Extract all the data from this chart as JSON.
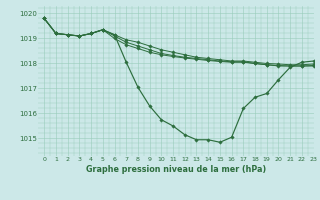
{
  "title": "Graphe pression niveau de la mer (hPa)",
  "xlim": [
    -0.5,
    23
  ],
  "ylim": [
    1014.3,
    1020.3
  ],
  "yticks": [
    1015,
    1016,
    1017,
    1018,
    1019,
    1020
  ],
  "xticks": [
    0,
    1,
    2,
    3,
    4,
    5,
    6,
    7,
    8,
    9,
    10,
    11,
    12,
    13,
    14,
    15,
    16,
    17,
    18,
    19,
    20,
    21,
    22,
    23
  ],
  "bg_color": "#cce8e8",
  "grid_color": "#99ccbb",
  "line_color": "#2d6e3e",
  "line1_x": [
    0,
    1,
    2,
    3,
    4,
    5,
    6,
    7,
    8,
    9,
    10,
    11,
    12,
    13,
    14,
    15,
    16,
    17,
    18,
    19,
    20,
    21,
    22,
    23
  ],
  "line1_y": [
    1019.8,
    1019.2,
    1019.15,
    1019.1,
    1019.2,
    1019.35,
    1019.15,
    1018.05,
    1017.05,
    1016.3,
    1015.75,
    1015.5,
    1015.15,
    1014.95,
    1014.95,
    1014.85,
    1015.05,
    1016.2,
    1016.65,
    1016.8,
    1017.35,
    1017.85,
    1018.05,
    1018.1
  ],
  "line2_x": [
    0,
    1,
    2,
    3,
    4,
    5,
    6,
    7,
    8,
    9,
    10,
    11,
    12,
    13,
    14,
    15,
    16,
    17,
    18,
    19,
    20,
    21,
    22,
    23
  ],
  "line2_y": [
    1019.8,
    1019.2,
    1019.15,
    1019.1,
    1019.2,
    1019.35,
    1019.15,
    1018.95,
    1018.85,
    1018.7,
    1018.55,
    1018.45,
    1018.35,
    1018.25,
    1018.2,
    1018.15,
    1018.1,
    1018.1,
    1018.05,
    1018.0,
    1017.98,
    1017.95,
    1017.95,
    1017.98
  ],
  "line3_x": [
    0,
    1,
    2,
    3,
    4,
    5,
    6,
    7,
    8,
    9,
    10,
    11,
    12,
    13,
    14,
    15,
    16,
    17,
    18,
    19,
    20,
    21,
    22,
    23
  ],
  "line3_y": [
    1019.8,
    1019.2,
    1019.15,
    1019.1,
    1019.2,
    1019.35,
    1019.0,
    1018.75,
    1018.6,
    1018.45,
    1018.35,
    1018.28,
    1018.22,
    1018.17,
    1018.12,
    1018.08,
    1018.05,
    1018.05,
    1018.0,
    1017.95,
    1017.9,
    1017.9,
    1017.9,
    1017.9
  ],
  "line4_x": [
    0,
    1,
    2,
    3,
    4,
    5,
    6,
    7,
    8,
    9,
    10,
    11,
    12,
    13,
    14,
    15,
    16,
    17,
    18,
    19,
    20,
    21,
    22,
    23
  ],
  "line4_y": [
    1019.8,
    1019.2,
    1019.15,
    1019.1,
    1019.2,
    1019.35,
    1019.1,
    1018.85,
    1018.7,
    1018.55,
    1018.4,
    1018.32,
    1018.25,
    1018.2,
    1018.15,
    1018.1,
    1018.07,
    1018.07,
    1018.0,
    1017.95,
    1017.92,
    1017.9,
    1017.9,
    1017.92
  ]
}
